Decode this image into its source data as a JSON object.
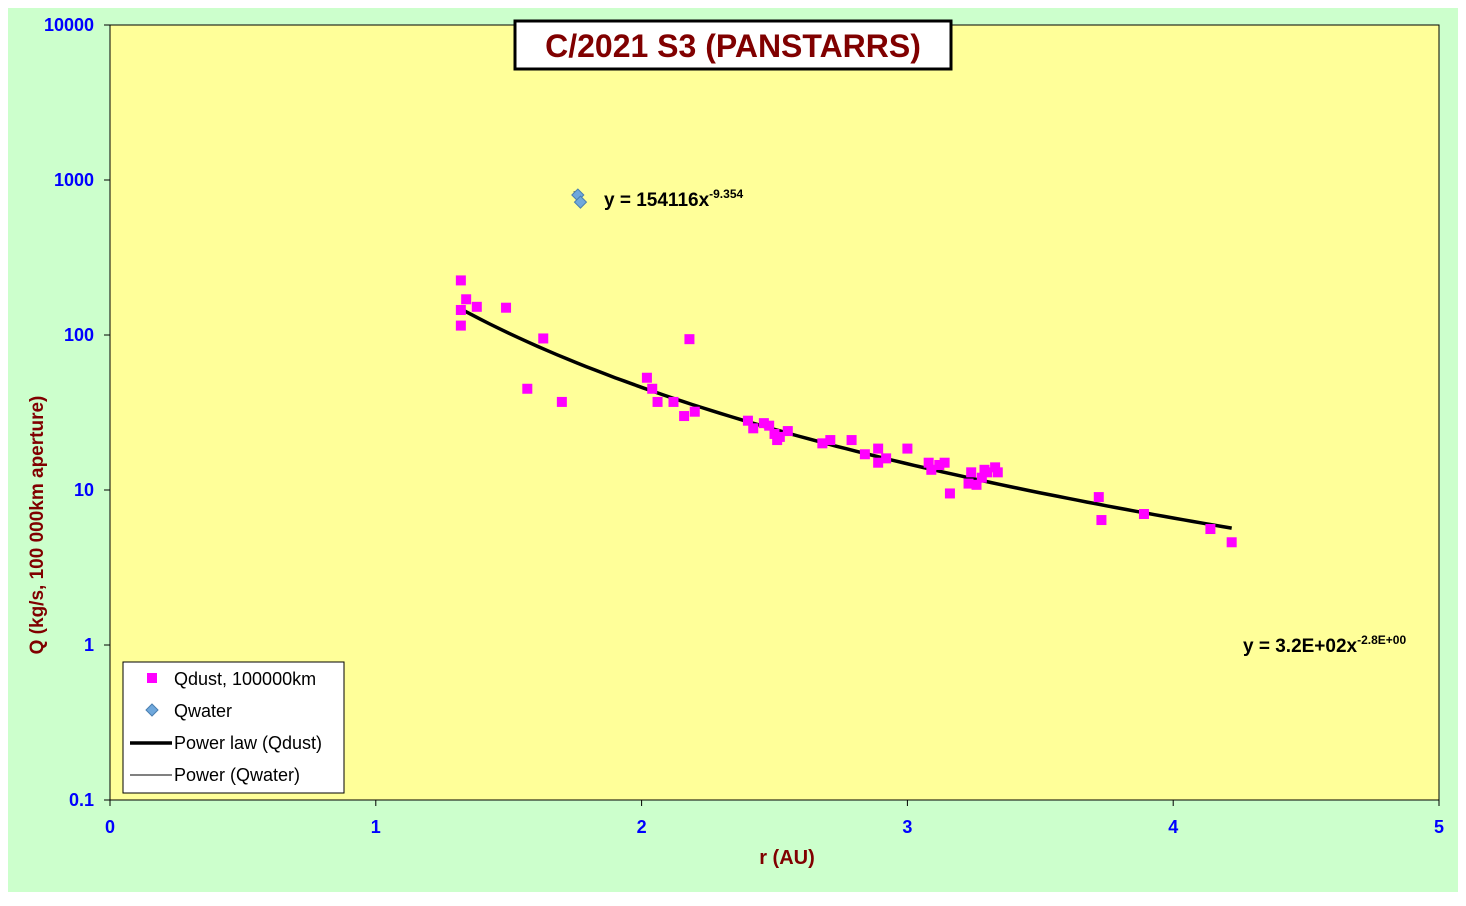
{
  "chart_data": {
    "type": "scatter",
    "title": "C/2021 S3 (PANSTARRS)",
    "xlabel": "r (AU)",
    "ylabel": "Q (kg/s, 100 000km aperture)",
    "xlim": [
      0,
      5
    ],
    "ylim": [
      0.1,
      10000
    ],
    "yscale": "log",
    "grid": false,
    "x_ticks": [
      "0",
      "1",
      "2",
      "3",
      "4",
      "5"
    ],
    "y_ticks": [
      "0.1",
      "1",
      "10",
      "100",
      "1000",
      "10000"
    ],
    "legend_position": "bottom-left",
    "colors": {
      "plot_background": "#ffff99",
      "outer_background": "#ccffcc",
      "qdust": "#ff00ff",
      "qwater": "#6fa8dc",
      "fit_line": "#000000",
      "title_text": "#800000",
      "axis_label": "#800000",
      "tick_label": "#0000ff"
    },
    "series": [
      {
        "name": "Qdust, 100000km",
        "marker": "square",
        "x": [
          1.32,
          1.32,
          1.32,
          1.34,
          1.38,
          1.49,
          1.57,
          1.63,
          1.7,
          2.02,
          2.04,
          2.06,
          2.12,
          2.16,
          2.18,
          2.2,
          2.4,
          2.42,
          2.46,
          2.48,
          2.5,
          2.51,
          2.52,
          2.55,
          2.68,
          2.71,
          2.79,
          2.84,
          2.89,
          2.89,
          2.92,
          3.0,
          3.08,
          3.09,
          3.12,
          3.14,
          3.16,
          3.23,
          3.24,
          3.26,
          3.28,
          3.29,
          3.3,
          3.33,
          3.34,
          3.72,
          3.73,
          3.89,
          4.14,
          4.22
        ],
        "y": [
          225,
          145,
          115,
          170,
          152,
          150,
          45,
          95,
          37,
          53,
          45,
          37,
          37,
          30,
          94,
          32,
          28,
          25,
          27,
          26,
          23,
          21,
          22,
          24,
          20,
          21,
          21,
          17,
          18.5,
          15,
          16,
          18.5,
          15,
          13.5,
          14.5,
          15,
          9.5,
          11,
          13,
          10.8,
          12,
          13.5,
          13,
          14,
          13,
          9,
          6.4,
          7,
          5.6,
          4.6
        ]
      },
      {
        "name": "Qwater",
        "marker": "diamond",
        "x": [
          1.76,
          1.77
        ],
        "y": [
          800,
          720
        ]
      },
      {
        "name": "Power law (Qdust)",
        "type": "line",
        "fit": "power",
        "coefficient": 320,
        "exponent": -2.8,
        "x_range": [
          1.32,
          4.22
        ],
        "equation_label": "y = 3.2E+02x",
        "equation_exponent": "-2.8E+00"
      },
      {
        "name": "Power (Qwater)",
        "type": "line",
        "fit": "power",
        "coefficient": 154116,
        "exponent": -9.354,
        "x_range": [
          1.745,
          1.78
        ],
        "equation_label": "y = 154116x",
        "equation_exponent": "-9.354"
      }
    ]
  }
}
